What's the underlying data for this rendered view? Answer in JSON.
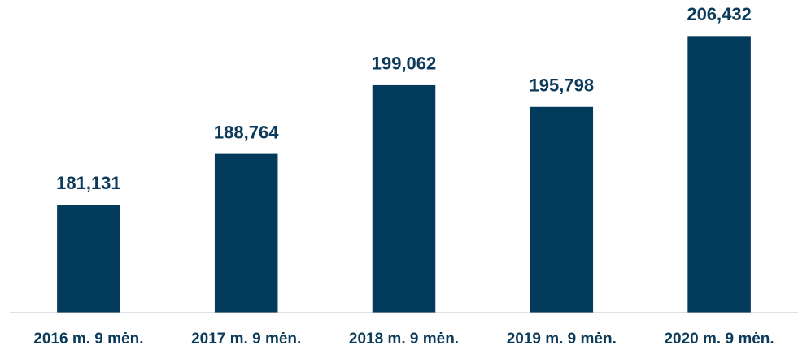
{
  "chart_data": {
    "type": "bar",
    "categories": [
      "2016 m. 9 mėn.",
      "2017 m. 9 mėn.",
      "2018 m. 9 mėn.",
      "2019 m. 9 mėn.",
      "2020 m. 9 mėn."
    ],
    "values": [
      181131,
      188764,
      199062,
      195798,
      206432
    ],
    "value_labels": [
      "181,131",
      "188,764",
      "199,062",
      "195,798",
      "206,432"
    ],
    "color": "#023a5b",
    "ylim": [
      165000,
      210000
    ]
  }
}
